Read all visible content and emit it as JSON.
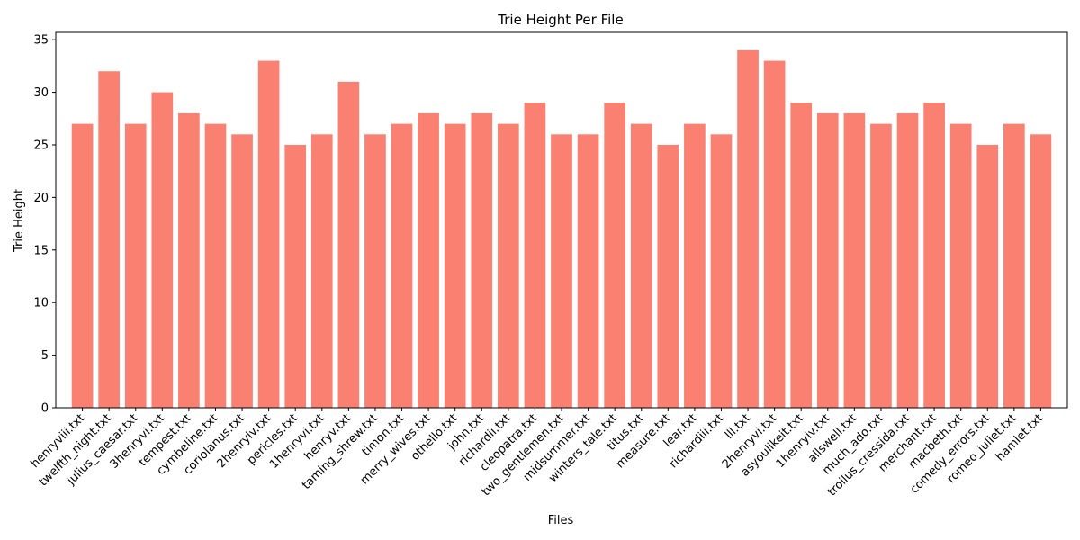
{
  "chart_data": {
    "type": "bar",
    "title": "Trie Height Per File",
    "xlabel": "Files",
    "ylabel": "Trie Height",
    "ylim": [
      0,
      35.7
    ],
    "yticks": [
      0,
      5,
      10,
      15,
      20,
      25,
      30,
      35
    ],
    "bar_color": "#fa8072",
    "grid": false,
    "categories": [
      "henryviii.txt",
      "twelfth_night.txt",
      "julius_caesar.txt",
      "3henryvi.txt",
      "tempest.txt",
      "cymbeline.txt",
      "coriolanus.txt",
      "2henryiv.txt",
      "pericles.txt",
      "1henryvi.txt",
      "henryv.txt",
      "taming_shrew.txt",
      "timon.txt",
      "merry_wives.txt",
      "othello.txt",
      "john.txt",
      "richardii.txt",
      "cleopatra.txt",
      "two_gentlemen.txt",
      "midsummer.txt",
      "winters_tale.txt",
      "titus.txt",
      "measure.txt",
      "lear.txt",
      "richardiii.txt",
      "lll.txt",
      "2henryvi.txt",
      "asyoulikeit.txt",
      "1henryiv.txt",
      "allswell.txt",
      "much_ado.txt",
      "troilus_cressida.txt",
      "merchant.txt",
      "macbeth.txt",
      "comedy_errors.txt",
      "romeo_juliet.txt",
      "hamlet.txt"
    ],
    "values": [
      27,
      32,
      27,
      30,
      28,
      27,
      26,
      33,
      25,
      26,
      31,
      26,
      27,
      28,
      27,
      28,
      27,
      29,
      26,
      26,
      29,
      27,
      25,
      27,
      26,
      34,
      33,
      29,
      28,
      28,
      27,
      28,
      29,
      27,
      25,
      27,
      26
    ]
  }
}
